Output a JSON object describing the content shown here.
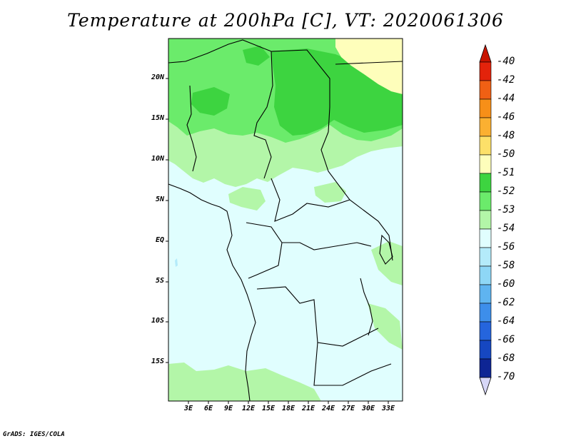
{
  "title": "Temperature at 200hPa [C], VT: 2020061306",
  "credit": "GrADS: IGES/COLA",
  "lat_labels": [
    "20N",
    "15N",
    "10N",
    "5N",
    "EQ",
    "5S",
    "10S",
    "15S"
  ],
  "lon_labels": [
    "3E",
    "6E",
    "9E",
    "12E",
    "15E",
    "18E",
    "21E",
    "24E",
    "27E",
    "30E",
    "33E"
  ],
  "colorbar": {
    "labels": [
      "-40",
      "-42",
      "-44",
      "-46",
      "-48",
      "-50",
      "-51",
      "-52",
      "-53",
      "-54",
      "-56",
      "-58",
      "-60",
      "-62",
      "-64",
      "-66",
      "-68",
      "-70"
    ],
    "colors": [
      "#e3230b",
      "#f06014",
      "#f78f18",
      "#fbb031",
      "#fde069",
      "#fefebb",
      "#3dd440",
      "#6beb6b",
      "#b3f6a8",
      "#e0fefe",
      "#b4ebfa",
      "#8ed7f6",
      "#5fb4f0",
      "#3d8eea",
      "#2565dd",
      "#1647c1",
      "#0e2594"
    ],
    "top_arrow_color": "#c81400",
    "bottom_arrow_color": "#d7d7f7"
  },
  "map_colors": {
    "c_54": "#e0fefe",
    "c_53": "#b3f6a8",
    "c_52": "#6beb6b",
    "c_51": "#3dd440",
    "c_50": "#fefebb",
    "c_56": "#b4ebfa"
  }
}
